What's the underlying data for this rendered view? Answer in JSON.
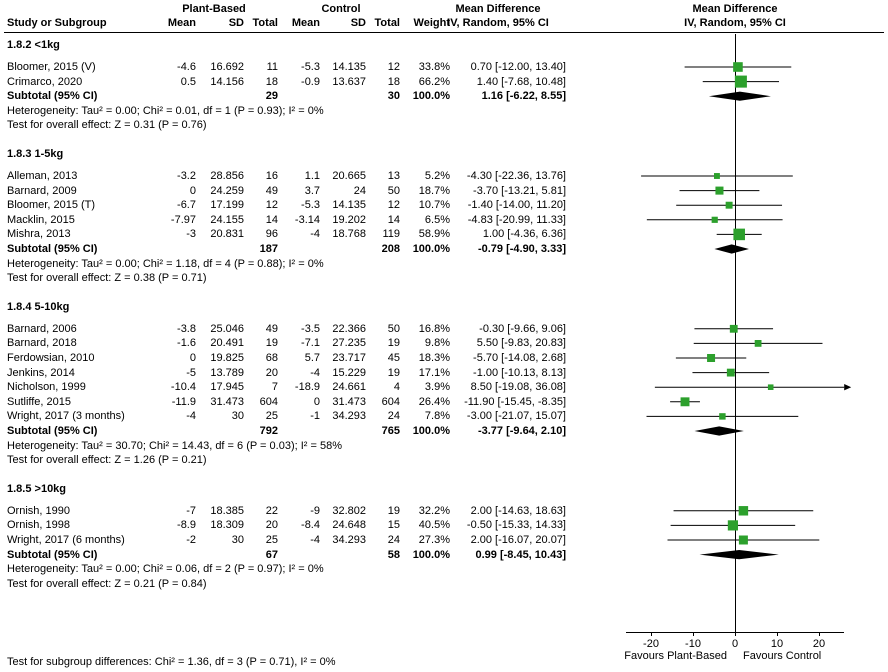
{
  "header": {
    "group1": "Plant-Based",
    "group2": "Control",
    "md_text": "Mean Difference",
    "md_plot": "Mean Difference",
    "col_study": "Study or Subgroup",
    "col_mean": "Mean",
    "col_sd": "SD",
    "col_total": "Total",
    "col_weight": "Weight",
    "col_ci": "IV, Random, 95% CI"
  },
  "footer": {
    "subgroup_test": "Test for subgroup differences: Chi² = 1.36, df = 3 (P = 0.71), I² = 0%"
  },
  "chart_data": {
    "type": "forest",
    "effect_measure": "Mean Difference, IV, Random, 95% CI",
    "axis": {
      "ticks": [
        -20,
        -10,
        0,
        10,
        20
      ],
      "range": [
        -26,
        26
      ],
      "left_label": "Favours Plant-Based",
      "right_label": "Favours Control"
    },
    "colors": {
      "square": "#2CA02C",
      "diamond": "#000000",
      "line": "#000000"
    },
    "groups": [
      {
        "label": "1.8.2 <1kg",
        "studies": [
          {
            "name": "Bloomer, 2015 (V)",
            "mean1": "-4.6",
            "sd1": "16.692",
            "n1": "11",
            "mean2": "-5.3",
            "sd2": "14.135",
            "n2": "12",
            "weight": "33.8%",
            "ci_text": "0.70 [-12.00, 13.40]",
            "est": 0.7,
            "lo": -12.0,
            "hi": 13.4,
            "w": 33.8
          },
          {
            "name": "Crimarco, 2020",
            "mean1": "0.5",
            "sd1": "14.156",
            "n1": "18",
            "mean2": "-0.9",
            "sd2": "13.637",
            "n2": "18",
            "weight": "66.2%",
            "ci_text": "1.40 [-7.68, 10.48]",
            "est": 1.4,
            "lo": -7.68,
            "hi": 10.48,
            "w": 66.2
          }
        ],
        "subtotal": {
          "label": "Subtotal (95% CI)",
          "n1": "29",
          "n2": "30",
          "weight": "100.0%",
          "ci_text": "1.16 [-6.22, 8.55]",
          "est": 1.16,
          "lo": -6.22,
          "hi": 8.55
        },
        "heterogeneity": "Heterogeneity: Tau² = 0.00; Chi² = 0.01, df = 1 (P = 0.93); I² = 0%",
        "overall": "Test for overall effect: Z = 0.31 (P = 0.76)"
      },
      {
        "label": "1.8.3 1-5kg",
        "studies": [
          {
            "name": "Alleman, 2013",
            "mean1": "-3.2",
            "sd1": "28.856",
            "n1": "16",
            "mean2": "1.1",
            "sd2": "20.665",
            "n2": "13",
            "weight": "5.2%",
            "ci_text": "-4.30 [-22.36, 13.76]",
            "est": -4.3,
            "lo": -22.36,
            "hi": 13.76,
            "w": 5.2
          },
          {
            "name": "Barnard, 2009",
            "mean1": "0",
            "sd1": "24.259",
            "n1": "49",
            "mean2": "3.7",
            "sd2": "24",
            "n2": "50",
            "weight": "18.7%",
            "ci_text": "-3.70 [-13.21, 5.81]",
            "est": -3.7,
            "lo": -13.21,
            "hi": 5.81,
            "w": 18.7
          },
          {
            "name": "Bloomer, 2015 (T)",
            "mean1": "-6.7",
            "sd1": "17.199",
            "n1": "12",
            "mean2": "-5.3",
            "sd2": "14.135",
            "n2": "12",
            "weight": "10.7%",
            "ci_text": "-1.40 [-14.00, 11.20]",
            "est": -1.4,
            "lo": -14.0,
            "hi": 11.2,
            "w": 10.7
          },
          {
            "name": "Macklin, 2015",
            "mean1": "-7.97",
            "sd1": "24.155",
            "n1": "14",
            "mean2": "-3.14",
            "sd2": "19.202",
            "n2": "14",
            "weight": "6.5%",
            "ci_text": "-4.83 [-20.99, 11.33]",
            "est": -4.83,
            "lo": -20.99,
            "hi": 11.33,
            "w": 6.5
          },
          {
            "name": "Mishra, 2013",
            "mean1": "-3",
            "sd1": "20.831",
            "n1": "96",
            "mean2": "-4",
            "sd2": "18.768",
            "n2": "119",
            "weight": "58.9%",
            "ci_text": "1.00 [-4.36, 6.36]",
            "est": 1.0,
            "lo": -4.36,
            "hi": 6.36,
            "w": 58.9
          }
        ],
        "subtotal": {
          "label": "Subtotal (95% CI)",
          "n1": "187",
          "n2": "208",
          "weight": "100.0%",
          "ci_text": "-0.79 [-4.90, 3.33]",
          "est": -0.79,
          "lo": -4.9,
          "hi": 3.33
        },
        "heterogeneity": "Heterogeneity: Tau² = 0.00; Chi² = 1.18, df = 4 (P = 0.88); I² = 0%",
        "overall": "Test for overall effect: Z = 0.38 (P = 0.71)"
      },
      {
        "label": "1.8.4 5-10kg",
        "studies": [
          {
            "name": "Barnard, 2006",
            "mean1": "-3.8",
            "sd1": "25.046",
            "n1": "49",
            "mean2": "-3.5",
            "sd2": "22.366",
            "n2": "50",
            "weight": "16.8%",
            "ci_text": "-0.30 [-9.66, 9.06]",
            "est": -0.3,
            "lo": -9.66,
            "hi": 9.06,
            "w": 16.8
          },
          {
            "name": "Barnard, 2018",
            "mean1": "-1.6",
            "sd1": "20.491",
            "n1": "19",
            "mean2": "-7.1",
            "sd2": "27.235",
            "n2": "19",
            "weight": "9.8%",
            "ci_text": "5.50 [-9.83, 20.83]",
            "est": 5.5,
            "lo": -9.83,
            "hi": 20.83,
            "w": 9.8
          },
          {
            "name": "Ferdowsian, 2010",
            "mean1": "0",
            "sd1": "19.825",
            "n1": "68",
            "mean2": "5.7",
            "sd2": "23.717",
            "n2": "45",
            "weight": "18.3%",
            "ci_text": "-5.70 [-14.08, 2.68]",
            "est": -5.7,
            "lo": -14.08,
            "hi": 2.68,
            "w": 18.3
          },
          {
            "name": "Jenkins, 2014",
            "mean1": "-5",
            "sd1": "13.789",
            "n1": "20",
            "mean2": "-4",
            "sd2": "15.229",
            "n2": "19",
            "weight": "17.1%",
            "ci_text": "-1.00 [-10.13, 8.13]",
            "est": -1.0,
            "lo": -10.13,
            "hi": 8.13,
            "w": 17.1
          },
          {
            "name": "Nicholson, 1999",
            "mean1": "-10.4",
            "sd1": "17.945",
            "n1": "7",
            "mean2": "-18.9",
            "sd2": "24.661",
            "n2": "4",
            "weight": "3.9%",
            "ci_text": "8.50 [-19.08, 36.08]",
            "est": 8.5,
            "lo": -19.08,
            "hi": 36.08,
            "w": 3.9
          },
          {
            "name": "Sutliffe, 2015",
            "mean1": "-11.9",
            "sd1": "31.473",
            "n1": "604",
            "mean2": "0",
            "sd2": "31.473",
            "n2": "604",
            "weight": "26.4%",
            "ci_text": "-11.90 [-15.45, -8.35]",
            "est": -11.9,
            "lo": -15.45,
            "hi": -8.35,
            "w": 26.4
          },
          {
            "name": "Wright, 2017 (3 months)",
            "mean1": "-4",
            "sd1": "30",
            "n1": "25",
            "mean2": "-1",
            "sd2": "34.293",
            "n2": "24",
            "weight": "7.8%",
            "ci_text": "-3.00 [-21.07, 15.07]",
            "est": -3.0,
            "lo": -21.07,
            "hi": 15.07,
            "w": 7.8
          }
        ],
        "subtotal": {
          "label": "Subtotal (95% CI)",
          "n1": "792",
          "n2": "765",
          "weight": "100.0%",
          "ci_text": "-3.77 [-9.64, 2.10]",
          "est": -3.77,
          "lo": -9.64,
          "hi": 2.1
        },
        "heterogeneity": "Heterogeneity: Tau² = 30.70; Chi² = 14.43, df = 6 (P = 0.03); I² = 58%",
        "overall": "Test for overall effect: Z = 1.26 (P = 0.21)"
      },
      {
        "label": "1.8.5 >10kg",
        "studies": [
          {
            "name": "Ornish, 1990",
            "mean1": "-7",
            "sd1": "18.385",
            "n1": "22",
            "mean2": "-9",
            "sd2": "32.802",
            "n2": "19",
            "weight": "32.2%",
            "ci_text": "2.00 [-14.63, 18.63]",
            "est": 2.0,
            "lo": -14.63,
            "hi": 18.63,
            "w": 32.2
          },
          {
            "name": "Ornish, 1998",
            "mean1": "-8.9",
            "sd1": "18.309",
            "n1": "20",
            "mean2": "-8.4",
            "sd2": "24.648",
            "n2": "15",
            "weight": "40.5%",
            "ci_text": "-0.50 [-15.33, 14.33]",
            "est": -0.5,
            "lo": -15.33,
            "hi": 14.33,
            "w": 40.5
          },
          {
            "name": "Wright, 2017 (6 months)",
            "mean1": "-2",
            "sd1": "30",
            "n1": "25",
            "mean2": "-4",
            "sd2": "34.293",
            "n2": "24",
            "weight": "27.3%",
            "ci_text": "2.00 [-16.07, 20.07]",
            "est": 2.0,
            "lo": -16.07,
            "hi": 20.07,
            "w": 27.3
          }
        ],
        "subtotal": {
          "label": "Subtotal (95% CI)",
          "n1": "67",
          "n2": "58",
          "weight": "100.0%",
          "ci_text": "0.99 [-8.45, 10.43]",
          "est": 0.99,
          "lo": -8.45,
          "hi": 10.43
        },
        "heterogeneity": "Heterogeneity: Tau² = 0.00; Chi² = 0.06, df = 2 (P = 0.97); I² = 0%",
        "overall": "Test for overall effect: Z = 0.21 (P = 0.84)"
      }
    ]
  }
}
